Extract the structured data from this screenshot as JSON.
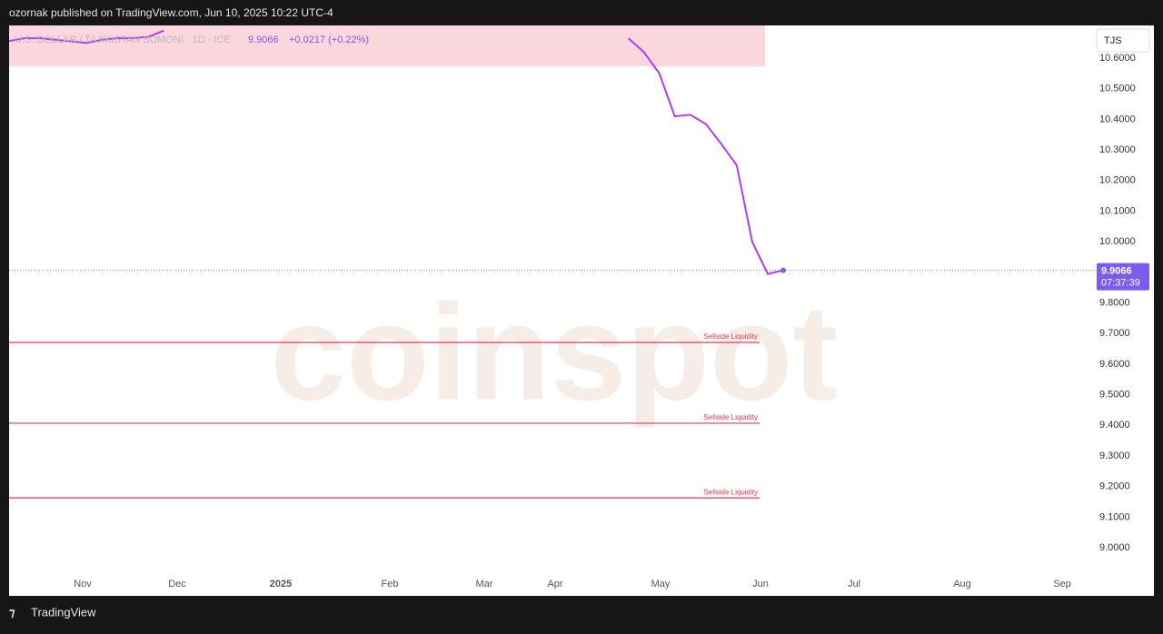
{
  "header": "ozornak published on TradingView.com, Jun 10, 2025 10:22 UTC-4",
  "footer": "TradingView",
  "chart_data": {
    "type": "line",
    "symbol": "U.S. DOLLAR / TAJIKISTAN SOMONI · 1D · ICE",
    "change_label": "+0.0217 (+0.22%)",
    "currency": "TJS",
    "countdown": "07:37:39",
    "watermark": "coinspot",
    "x_labels": [
      "Nov",
      "Dec",
      "2025",
      "Feb",
      "Mar",
      "Apr",
      "May",
      "Jun",
      "Jul",
      "Aug",
      "Sep"
    ],
    "series": [
      {
        "name": "USD/TJS",
        "color": "#b43cf0",
        "values": [
          10.656,
          10.665,
          10.665,
          10.66,
          10.655,
          10.65,
          10.66,
          10.665,
          10.665,
          10.67,
          10.69,
          null,
          null,
          null,
          null,
          null,
          null,
          null,
          null,
          null,
          null,
          null,
          null,
          null,
          null,
          null,
          null,
          null,
          null,
          null,
          null,
          null,
          null,
          null,
          null,
          null,
          null,
          null,
          null,
          null,
          10.665,
          10.62,
          10.55,
          10.41,
          10.415,
          10.385,
          10.32,
          10.25,
          10.0,
          9.895,
          9.9066
        ]
      }
    ],
    "zones": [
      {
        "low": 10.573,
        "high": 10.71,
        "color": "#fad7dc"
      }
    ],
    "levels": [
      {
        "label": "Sellside Liquidity",
        "value": 9.671,
        "color": "#e53950"
      },
      {
        "label": "Sellside Liquidity",
        "value": 9.407,
        "color": "#e53950"
      },
      {
        "label": "Sellside Liquidity",
        "value": 9.163,
        "color": "#e53950"
      }
    ],
    "price_color": "#7b5cf0",
    "ylim": [
      8.926,
      10.707
    ],
    "yticks": [
      {
        "value": 9.0,
        "label": "9.0000"
      },
      {
        "value": 9.1,
        "label": "9.1000"
      },
      {
        "value": 9.2,
        "label": "9.2000"
      },
      {
        "value": 9.3,
        "label": "9.3000"
      },
      {
        "value": 9.4,
        "label": "9.4000"
      },
      {
        "value": 9.5,
        "label": "9.5000"
      },
      {
        "value": 9.6,
        "label": "9.6000"
      },
      {
        "value": 9.7,
        "label": "9.7000"
      },
      {
        "value": 9.8,
        "label": "9.8000"
      },
      {
        "value": 10.0,
        "label": "10.0000"
      },
      {
        "value": 10.1,
        "label": "10.1000"
      },
      {
        "value": 10.2,
        "label": "10.2000"
      },
      {
        "value": 10.3,
        "label": "10.3000"
      },
      {
        "value": 10.4,
        "label": "10.4000"
      },
      {
        "value": 10.5,
        "label": "10.5000"
      },
      {
        "value": 10.6,
        "label": "10.6000"
      }
    ]
  }
}
